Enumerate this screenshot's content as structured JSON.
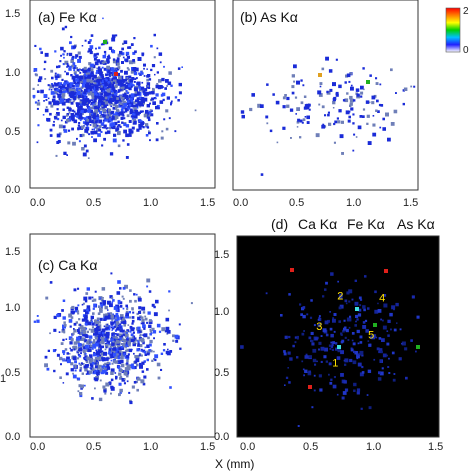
{
  "panels": [
    {
      "id": "a",
      "label": "(a) Fe Kα",
      "element": "Fe",
      "x_ticks": [
        "0.0",
        "0.5",
        "1.0",
        "1.5"
      ],
      "y_ticks": [
        "0.0",
        "0.5",
        "1.0",
        "1.5"
      ]
    },
    {
      "id": "b",
      "label": "(b) As Kα",
      "element": "As",
      "x_ticks": [
        "0.0",
        "0.5",
        "1.0",
        "1.5"
      ],
      "y_ticks": [
        "0.0",
        "0.5",
        "1.0",
        "1.5"
      ]
    },
    {
      "id": "c",
      "label": "(c) Ca Kα",
      "element": "Ca",
      "x_ticks": [
        "0.0",
        "0.5",
        "1.0",
        "1.5"
      ],
      "y_ticks": [
        "0.0",
        "0.5",
        "1.0",
        "1.5"
      ]
    },
    {
      "id": "d",
      "label": "(d)",
      "element": "composite",
      "x_ticks": [
        "0.0",
        "0.5",
        "1.0",
        "1.5"
      ],
      "y_ticks": [
        "0.0",
        "0.5",
        "1.0",
        "1.5"
      ],
      "legend": [
        {
          "text": "Ca Kα",
          "color": "#e0201a"
        },
        {
          "text": "Fe Kα",
          "color": "#2a3fd0"
        },
        {
          "text": "As Kα",
          "color": "#20b020"
        }
      ],
      "spots": [
        {
          "label": "1",
          "x": 0.75,
          "y": 0.55
        },
        {
          "label": "2",
          "x": 0.79,
          "y": 1.1
        },
        {
          "label": "3",
          "x": 0.62,
          "y": 0.85
        },
        {
          "label": "4",
          "x": 1.13,
          "y": 1.08
        },
        {
          "label": "5",
          "x": 1.04,
          "y": 0.78
        }
      ]
    }
  ],
  "colorbar": {
    "top_label": "2",
    "bottom_label": "0",
    "colors": [
      "#ffffff",
      "#2020ff",
      "#00c0ff",
      "#00d000",
      "#ffff00",
      "#ff8000",
      "#ff0000"
    ]
  },
  "x_axis_title": "X (mm)",
  "y_axis_title_fragment": "1",
  "axis_ranges": {
    "x": [
      0,
      1.6
    ],
    "y": [
      0,
      1.6
    ]
  },
  "palette": {
    "map_point": "#1a2bd8",
    "map_light": "#6f7fb8",
    "composite_bg": "#000000"
  }
}
